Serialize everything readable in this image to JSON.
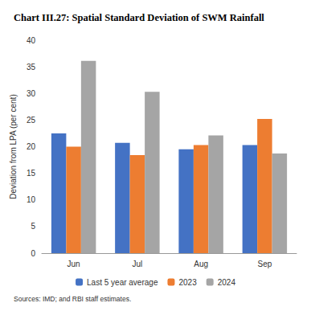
{
  "chart_data": {
    "type": "bar",
    "title": "Chart III.27: Spatial Standard Deviation of SWM Rainfall",
    "y_label": "Deviation from LPA (per cent)",
    "source": "Sources: IMD; and RBI staff estimates.",
    "categories": [
      "Jun",
      "Jul",
      "Aug",
      "Sep"
    ],
    "series": [
      {
        "name": "Last 5 year average",
        "color": "#4472c4",
        "values": [
          22.5,
          20.7,
          19.5,
          20.3
        ]
      },
      {
        "name": "2023",
        "color": "#ed7d31",
        "values": [
          20.0,
          18.4,
          20.3,
          25.2
        ]
      },
      {
        "name": "2024",
        "color": "#a5a5a5",
        "values": [
          36.1,
          30.3,
          22.1,
          18.7
        ]
      }
    ],
    "ylim": [
      0,
      40
    ],
    "yticks": [
      0,
      5,
      10,
      15,
      20,
      25,
      30,
      35,
      40
    ],
    "grid": false,
    "legend": "bottom"
  }
}
